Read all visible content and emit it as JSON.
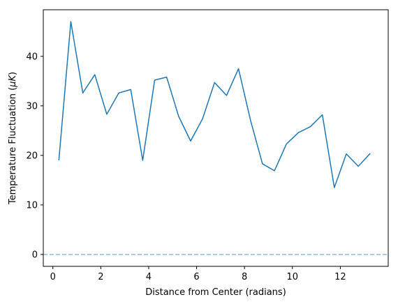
{
  "chart_data": {
    "type": "line",
    "title": "",
    "xlabel": "Distance from Center (radians)",
    "ylabel_prefix": "Temperature Fluctuation (",
    "ylabel_mu": "μ",
    "ylabel_unit": "K",
    "ylabel_suffix": ")",
    "xlim": [
      -0.4,
      14.0
    ],
    "ylim": [
      -2.4,
      49.4
    ],
    "xticks": [
      0,
      2,
      4,
      6,
      8,
      10,
      12
    ],
    "yticks": [
      0,
      10,
      20,
      30,
      40
    ],
    "grid": false,
    "line_color": "#1f77b4",
    "baseline": {
      "y": 0,
      "style": "dashed",
      "color": "#1f77b4",
      "opacity": 0.5
    },
    "series": [
      {
        "x": [
          0.25,
          0.75,
          1.25,
          1.75,
          2.25,
          2.75,
          3.25,
          3.75,
          4.25,
          4.75,
          5.25,
          5.75,
          6.25,
          6.75,
          7.25,
          7.75,
          8.25,
          8.75,
          9.25,
          9.75,
          10.25,
          10.75,
          11.25,
          11.75,
          12.25,
          12.75,
          13.25
        ],
        "values": [
          19.0,
          47.0,
          32.6,
          36.3,
          28.3,
          32.6,
          33.3,
          19.0,
          35.2,
          35.8,
          27.9,
          22.9,
          27.4,
          34.7,
          32.1,
          37.5,
          27.1,
          18.3,
          16.9,
          22.3,
          24.6,
          25.8,
          28.2,
          13.5,
          20.3,
          17.8,
          20.4
        ]
      }
    ]
  }
}
